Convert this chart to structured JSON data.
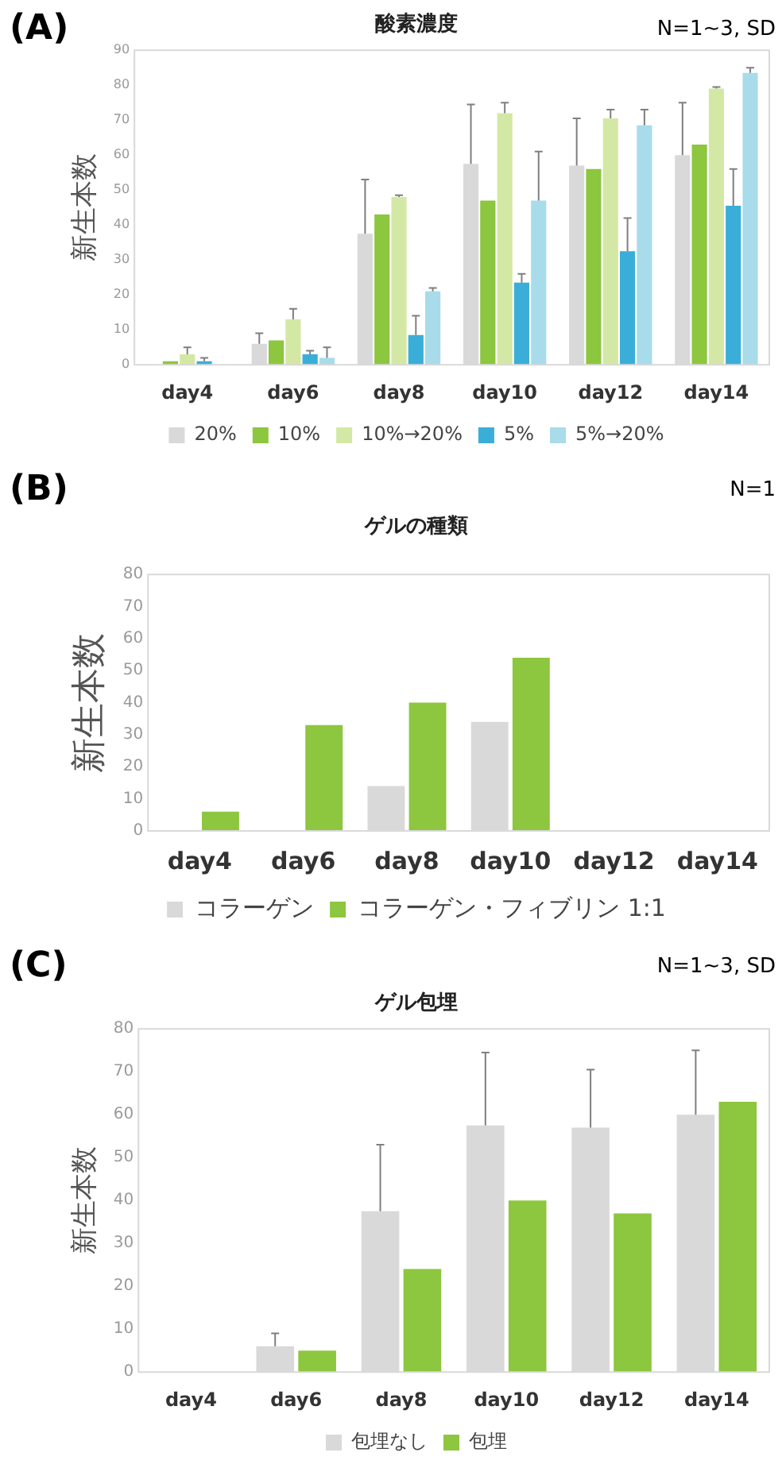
{
  "chart_data": [
    {
      "type": "bar",
      "title": "酸素濃度",
      "ylabel": "新生本数",
      "annotations": [
        "(A)",
        "N=1~3, SD"
      ],
      "categories": [
        "day4",
        "day6",
        "day8",
        "day10",
        "day12",
        "day14"
      ],
      "series": [
        {
          "name": "20%",
          "color": "#d9d9d9",
          "values": [
            null,
            6,
            37.5,
            57.5,
            57,
            60
          ],
          "errors": [
            null,
            [
              6,
              9
            ],
            [
              37.5,
              53
            ],
            [
              57.5,
              74.5
            ],
            [
              57,
              70.5
            ],
            [
              60,
              75
            ]
          ]
        },
        {
          "name": "10%",
          "color": "#8dc63f",
          "values": [
            1,
            7,
            43,
            47,
            56,
            63
          ]
        },
        {
          "name": "10%→20%",
          "color": "#d4e8a5",
          "values": [
            3,
            13,
            48,
            72,
            70.5,
            79
          ],
          "errors": [
            [
              3,
              5
            ],
            [
              13,
              16
            ],
            [
              48,
              48.5
            ],
            [
              72,
              75
            ],
            [
              70.5,
              73
            ],
            [
              79,
              79.5
            ]
          ]
        },
        {
          "name": "5%",
          "color": "#3aaed8",
          "values": [
            1,
            3,
            8.5,
            23.5,
            32.5,
            45.5
          ],
          "errors": [
            [
              1,
              2
            ],
            [
              3,
              4
            ],
            [
              8.5,
              14
            ],
            [
              23.5,
              26
            ],
            [
              32.5,
              42
            ],
            [
              45.5,
              56
            ]
          ]
        },
        {
          "name": "5%→20%",
          "color": "#a8dcea",
          "values": [
            null,
            2,
            21,
            47,
            68.5,
            83.5
          ],
          "errors": [
            null,
            [
              2,
              5
            ],
            [
              21,
              22
            ],
            [
              47,
              61
            ],
            [
              68.5,
              73
            ],
            [
              83.5,
              85
            ]
          ]
        }
      ],
      "ylim": [
        0,
        90
      ],
      "yticks": [
        0,
        10,
        20,
        30,
        40,
        50,
        60,
        70,
        80,
        90
      ],
      "grid": false,
      "legend": "bottom"
    },
    {
      "type": "bar",
      "title": "ゲルの種類",
      "ylabel": "新生本数",
      "annotations": [
        "(B)",
        "N=1"
      ],
      "categories": [
        "day4",
        "day6",
        "day8",
        "day10",
        "day12",
        "day14"
      ],
      "series": [
        {
          "name": "コラーゲン",
          "color": "#d9d9d9",
          "values": [
            null,
            null,
            14,
            34,
            null,
            null
          ]
        },
        {
          "name": "コラーゲン・フィブリン 1:1",
          "color": "#8dc63f",
          "values": [
            6,
            33,
            40,
            54,
            null,
            null
          ]
        }
      ],
      "ylim": [
        0,
        80
      ],
      "yticks": [
        0,
        10,
        20,
        30,
        40,
        50,
        60,
        70,
        80
      ],
      "grid": false,
      "legend": "bottom"
    },
    {
      "type": "bar",
      "title": "ゲル包埋",
      "ylabel": "新生本数",
      "annotations": [
        "(C)",
        "N=1~3, SD"
      ],
      "categories": [
        "day4",
        "day6",
        "day8",
        "day10",
        "day12",
        "day14"
      ],
      "series": [
        {
          "name": "包埋なし",
          "color": "#d9d9d9",
          "values": [
            null,
            6,
            37.5,
            57.5,
            57,
            60
          ],
          "errors": [
            null,
            [
              6,
              9
            ],
            [
              37.5,
              53
            ],
            [
              57.5,
              74.5
            ],
            [
              57,
              70.5
            ],
            [
              60,
              75
            ]
          ]
        },
        {
          "name": "包埋",
          "color": "#8dc63f",
          "values": [
            null,
            5,
            24,
            40,
            37,
            63
          ]
        }
      ],
      "ylim": [
        0,
        80
      ],
      "yticks": [
        0,
        10,
        20,
        30,
        40,
        50,
        60,
        70,
        80
      ],
      "grid": false,
      "legend": "bottom"
    }
  ]
}
